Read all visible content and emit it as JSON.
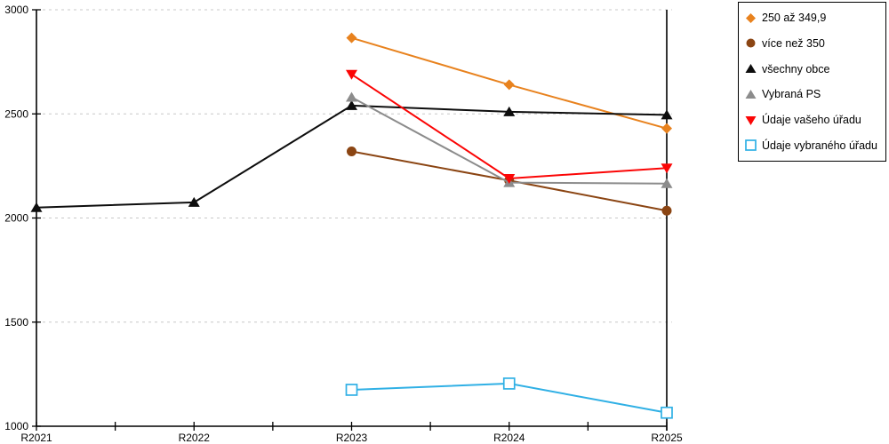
{
  "chart_data": {
    "type": "line",
    "title": "",
    "xlabel": "",
    "ylabel": "",
    "categories": [
      "R2021",
      "R2022",
      "R2023",
      "R2024",
      "R2025"
    ],
    "ylim": [
      1000,
      3000
    ],
    "yticks": [
      1000,
      1500,
      2000,
      2500,
      3000
    ],
    "grid": "horizontal dashed gridlines at 1500-3000",
    "gridline_color": "#c8c8c8",
    "axis_color": "#000000",
    "legend_position": "top-right",
    "legend_border_color": "#000000",
    "series": [
      {
        "name": "250 až 349,9",
        "marker": "diamond",
        "color": "#e8821e",
        "values": [
          null,
          null,
          2865,
          2640,
          2430
        ]
      },
      {
        "name": "více než 350",
        "marker": "circle",
        "color": "#8b4513",
        "values": [
          null,
          null,
          2320,
          2180,
          2035
        ]
      },
      {
        "name": "všechny obce",
        "marker": "triangle-up",
        "color": "#0d0d0d",
        "values": [
          2050,
          2075,
          2540,
          2510,
          2495
        ]
      },
      {
        "name": "Vybraná PS",
        "marker": "triangle-up",
        "color": "#8c8c8c",
        "values": [
          null,
          null,
          2580,
          2170,
          2165
        ]
      },
      {
        "name": "Údaje vašeho úřadu",
        "marker": "triangle-down",
        "color": "#fb0505",
        "values": [
          null,
          null,
          2690,
          2190,
          2240
        ]
      },
      {
        "name": "Údaje vybraného úřadu",
        "marker": "square-open",
        "color": "#30b0e5",
        "values": [
          null,
          null,
          1175,
          1205,
          1065
        ]
      }
    ]
  }
}
